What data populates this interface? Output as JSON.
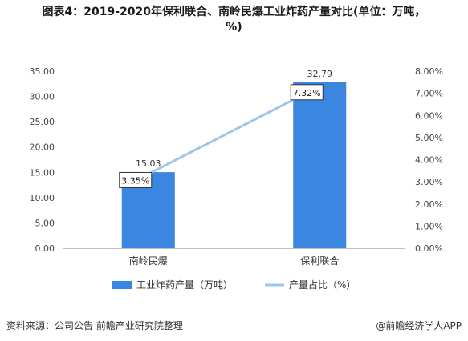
{
  "header": {
    "title_line1": "图表4：2019-2020年保利联合、南岭民爆工业炸药产量对比(单位：万吨，",
    "title_line2": "%)"
  },
  "chart_data": {
    "type": "bar",
    "categories": [
      "南岭民爆",
      "保利联合"
    ],
    "series": [
      {
        "name": "工业炸药产量（万吨）",
        "type": "bar",
        "axis": "left",
        "values": [
          15.03,
          32.79
        ],
        "labels": [
          "15.03",
          "32.79"
        ],
        "color": "#3a86e0"
      },
      {
        "name": "产量占比（%）",
        "type": "line",
        "axis": "right",
        "values": [
          3.35,
          7.32
        ],
        "labels": [
          "3.35%",
          "7.32%"
        ],
        "color": "#9fc4ee"
      }
    ],
    "ylim_left": [
      0,
      35
    ],
    "yticks_left": [
      "0.00",
      "5.00",
      "10.00",
      "15.00",
      "20.00",
      "25.00",
      "30.00",
      "35.00"
    ],
    "ylim_right": [
      0,
      8
    ],
    "yticks_right": [
      "0.00%",
      "1.00%",
      "2.00%",
      "3.00%",
      "4.00%",
      "5.00%",
      "6.00%",
      "7.00%",
      "8.00%"
    ],
    "legend_position": "bottom",
    "grid": false
  },
  "footer": {
    "source": "资料来源：公司公告 前瞻产业研究院整理",
    "brand": "@前瞻经济学人APP"
  }
}
